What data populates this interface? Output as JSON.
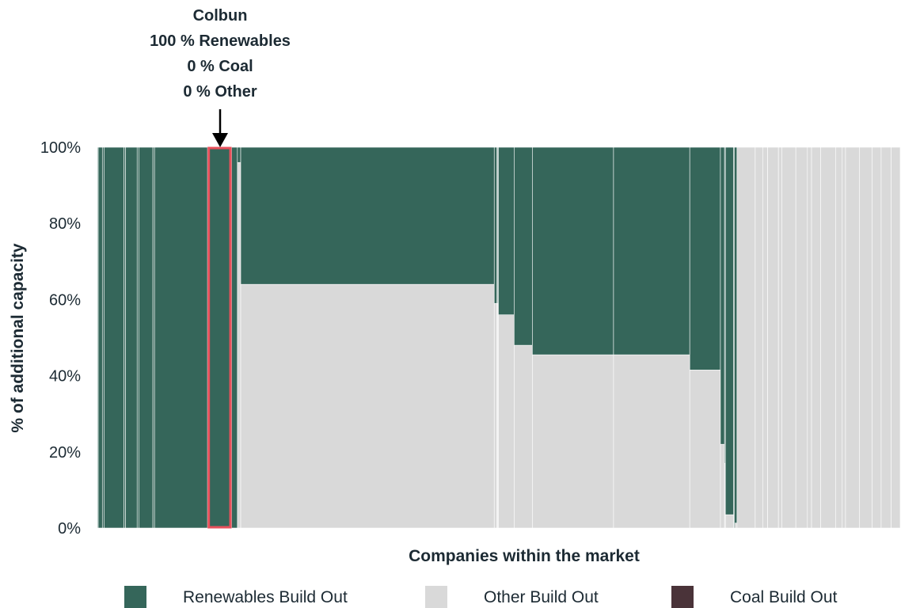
{
  "chart_data": {
    "type": "bar",
    "subtype": "variable-width stacked 100% (marimekko)",
    "xlabel": "Companies within the market",
    "ylabel": "% of additional capacity",
    "ylim": [
      0,
      100
    ],
    "yticks": [
      "0%",
      "20%",
      "40%",
      "60%",
      "80%",
      "100%"
    ],
    "grid": false,
    "legend_position": "bottom",
    "series": [
      {
        "name": "Renewables Build Out",
        "color": "#35665a"
      },
      {
        "name": "Other Build Out",
        "color": "#d9d9d9"
      },
      {
        "name": "Coal Build Out",
        "color": "#4a3339"
      }
    ],
    "highlight": {
      "company": "Colbun",
      "lines": [
        "Colbun",
        "100 % Renewables",
        "0 % Coal",
        "0 % Other"
      ],
      "outline_color": "#e8505b"
    },
    "companies": [
      {
        "share": 0.1,
        "renewables": 100
      },
      {
        "share": 0.5,
        "renewables": 100
      },
      {
        "share": 0.2,
        "renewables": 100
      },
      {
        "share": 2.4,
        "renewables": 100
      },
      {
        "share": 0.2,
        "renewables": 100
      },
      {
        "share": 1.4,
        "renewables": 100
      },
      {
        "share": 0.2,
        "renewables": 100
      },
      {
        "share": 1.7,
        "renewables": 100
      },
      {
        "share": 0.2,
        "renewables": 100
      },
      {
        "share": 6.4,
        "renewables": 100
      },
      {
        "share": 2.9,
        "renewables": 100,
        "highlight": true
      },
      {
        "share": 0.7,
        "renewables": 100
      },
      {
        "share": 0.4,
        "renewables": 4
      },
      {
        "share": 30.6,
        "renewables": 36
      },
      {
        "share": 0.3,
        "renewables": 41
      },
      {
        "share": 0.1,
        "renewables": 41
      },
      {
        "share": 0.1,
        "renewables": 41
      },
      {
        "share": 1.9,
        "renewables": 44
      },
      {
        "share": 2.2,
        "renewables": 52
      },
      {
        "share": 9.8,
        "renewables": 54.5
      },
      {
        "share": 9.2,
        "renewables": 54.5
      },
      {
        "share": 3.7,
        "renewables": 58.5
      },
      {
        "share": 0.5,
        "renewables": 78
      },
      {
        "share": 0.1,
        "renewables": 83
      },
      {
        "share": 1.0,
        "renewables": 96.5
      },
      {
        "share": 0.1,
        "renewables": 100
      },
      {
        "share": 0.3,
        "renewables": 98.7
      },
      {
        "share": 2.2,
        "renewables": 0
      },
      {
        "share": 0.9,
        "renewables": 0
      },
      {
        "share": 0.6,
        "renewables": 0
      },
      {
        "share": 1.3,
        "renewables": 0
      },
      {
        "share": 0.4,
        "renewables": 0
      },
      {
        "share": 1.7,
        "renewables": 0
      },
      {
        "share": 1.4,
        "renewables": 0
      },
      {
        "share": 0.5,
        "renewables": 0
      },
      {
        "share": 1.1,
        "renewables": 0
      },
      {
        "share": 1.8,
        "renewables": 0
      },
      {
        "share": 0.8,
        "renewables": 0
      },
      {
        "share": 0.4,
        "renewables": 0
      },
      {
        "share": 1.7,
        "renewables": 0
      },
      {
        "share": 1.5,
        "renewables": 0
      },
      {
        "share": 1.1,
        "renewables": 0
      },
      {
        "share": 1.2,
        "renewables": 0
      },
      {
        "share": 1.1,
        "renewables": 0
      }
    ]
  }
}
